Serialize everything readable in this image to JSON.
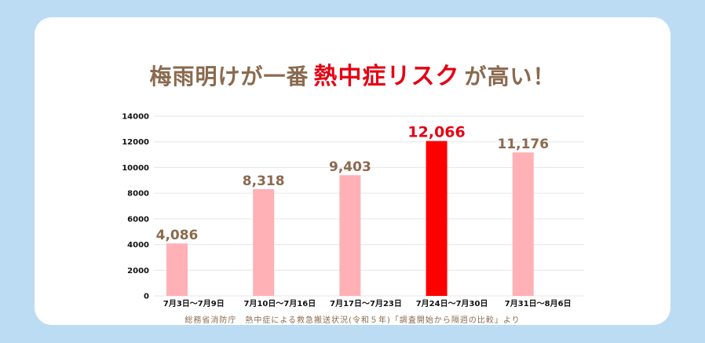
{
  "title": {
    "before": "梅雨明けが一番",
    "highlight": "熱中症リスク",
    "after": "が高い！"
  },
  "source": "総務省消防庁　熱中症による救急搬送状況(令和５年)「調査開始から隔週の比較」より",
  "colors": {
    "background": "#bcdcf4",
    "bar": "#ffb1b5",
    "bar_highlight": "#ff0000",
    "label": "#8a6a4f",
    "label_highlight": "#e60012"
  },
  "chart_data": {
    "type": "bar",
    "categories": [
      "7月3日〜7月9日",
      "7月10日〜7月16日",
      "7月17日〜7月23日",
      "7月24日〜7月30日",
      "7月31日〜8月6日"
    ],
    "values": [
      4086,
      8318,
      9403,
      12066,
      11176
    ],
    "value_labels": [
      "4,086",
      "8,318",
      "9,403",
      "12,066",
      "11,176"
    ],
    "highlight_index": 3,
    "yticks": [
      0,
      2000,
      4000,
      6000,
      8000,
      10000,
      12000,
      14000
    ],
    "ylim": [
      0,
      14000
    ],
    "grid": true,
    "legend": "none"
  }
}
